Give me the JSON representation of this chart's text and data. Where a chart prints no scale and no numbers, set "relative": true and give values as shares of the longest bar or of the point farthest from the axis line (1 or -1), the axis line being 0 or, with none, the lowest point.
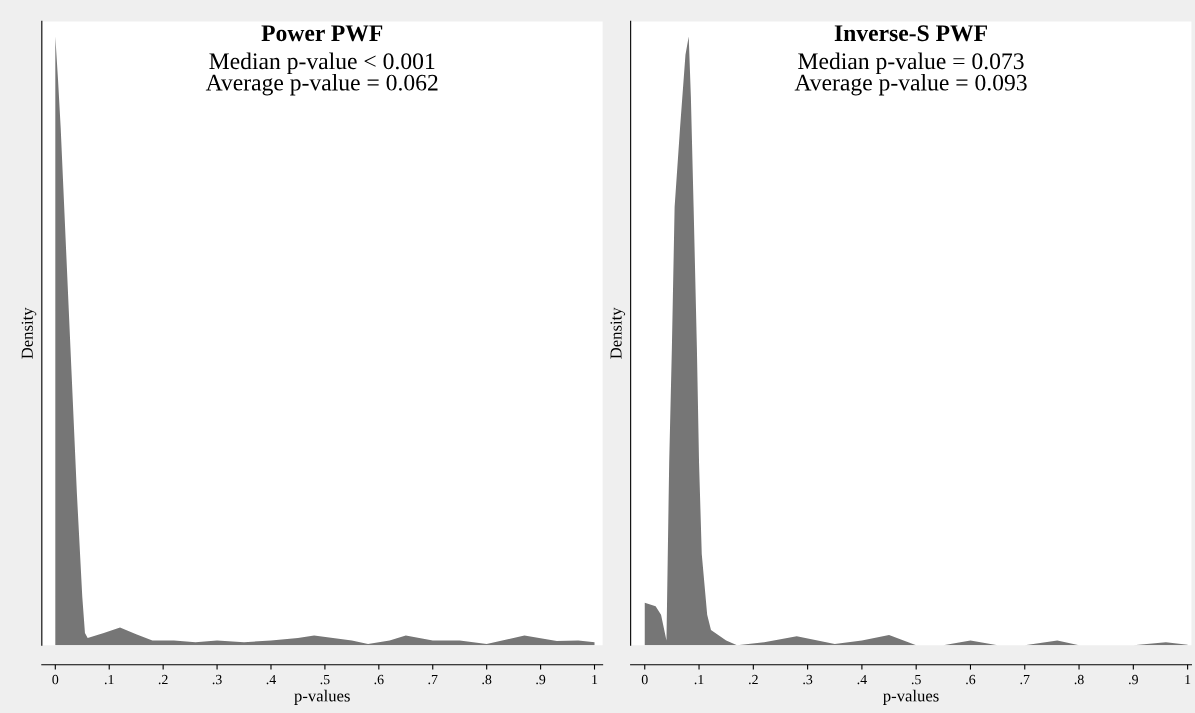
{
  "chart_data": [
    {
      "type": "area",
      "title": "Power PWF",
      "subtitle": "Median p-value < 0.001\nAverage p-value = 0.062",
      "xlabel": "p-values",
      "ylabel": "Density",
      "relative": true,
      "tick_labels": "x",
      "color": "#767676",
      "x": [
        0,
        0.005,
        0.01,
        0.015,
        0.02,
        0.025,
        0.03,
        0.04,
        0.05,
        0.055,
        0.06,
        0.09,
        0.12,
        0.15,
        0.18,
        0.22,
        0.26,
        0.3,
        0.35,
        0.4,
        0.45,
        0.48,
        0.55,
        0.58,
        0.62,
        0.65,
        0.7,
        0.75,
        0.8,
        0.87,
        0.93,
        0.97,
        1.0
      ],
      "values": [
        1.0,
        0.93,
        0.85,
        0.75,
        0.65,
        0.55,
        0.45,
        0.25,
        0.08,
        0.02,
        0.012,
        0.02,
        0.029,
        0.018,
        0.008,
        0.008,
        0.005,
        0.008,
        0.005,
        0.008,
        0.012,
        0.016,
        0.008,
        0.002,
        0.008,
        0.016,
        0.008,
        0.008,
        0.002,
        0.016,
        0.007,
        0.008,
        0.005
      ],
      "xlim": [
        -0.025,
        1.015
      ],
      "xticks": [
        {
          "value": 0,
          "label": "0"
        },
        {
          "value": 0.1,
          "label": ".1"
        },
        {
          "value": 0.2,
          "label": ".2"
        },
        {
          "value": 0.3,
          "label": ".3"
        },
        {
          "value": 0.4,
          "label": ".4"
        },
        {
          "value": 0.5,
          "label": ".5"
        },
        {
          "value": 0.6,
          "label": ".6"
        },
        {
          "value": 0.7,
          "label": ".7"
        },
        {
          "value": 0.8,
          "label": ".8"
        },
        {
          "value": 0.9,
          "label": ".9"
        },
        {
          "value": 1,
          "label": "1"
        }
      ],
      "grid": false,
      "legend": false
    },
    {
      "type": "area",
      "title": "Inverse-S PWF",
      "subtitle": "Median p-value = 0.073\nAverage p-value = 0.093",
      "xlabel": "p-values",
      "ylabel": "Density",
      "relative": true,
      "tick_labels": "x",
      "color": "#767676",
      "x": [
        0,
        0.02,
        0.03,
        0.04,
        0.045,
        0.05,
        0.055,
        0.065,
        0.075,
        0.081,
        0.085,
        0.09,
        0.096,
        0.1,
        0.105,
        0.115,
        0.122,
        0.15,
        0.17,
        0.22,
        0.28,
        0.35,
        0.4,
        0.45,
        0.5,
        0.55,
        0.6,
        0.65,
        0.7,
        0.76,
        0.8,
        0.9,
        0.96,
        1.0
      ],
      "values": [
        0.07,
        0.064,
        0.05,
        0.008,
        0.3,
        0.49,
        0.72,
        0.85,
        0.97,
        1.0,
        0.9,
        0.72,
        0.49,
        0.3,
        0.15,
        0.05,
        0.025,
        0.008,
        0.0,
        0.005,
        0.015,
        0.002,
        0.008,
        0.017,
        0.0,
        0.0,
        0.008,
        0.0,
        0.0,
        0.008,
        0.0,
        0.0,
        0.005,
        0.001
      ],
      "xlim": [
        -0.026,
        1.007
      ],
      "xticks": [
        {
          "value": 0,
          "label": "0"
        },
        {
          "value": 0.1,
          "label": ".1"
        },
        {
          "value": 0.2,
          "label": ".2"
        },
        {
          "value": 0.3,
          "label": ".3"
        },
        {
          "value": 0.4,
          "label": ".4"
        },
        {
          "value": 0.5,
          "label": ".5"
        },
        {
          "value": 0.6,
          "label": ".6"
        },
        {
          "value": 0.7,
          "label": ".7"
        },
        {
          "value": 0.8,
          "label": ".8"
        },
        {
          "value": 0.9,
          "label": ".9"
        },
        {
          "value": 1,
          "label": "1"
        }
      ],
      "grid": false,
      "legend": false
    }
  ]
}
